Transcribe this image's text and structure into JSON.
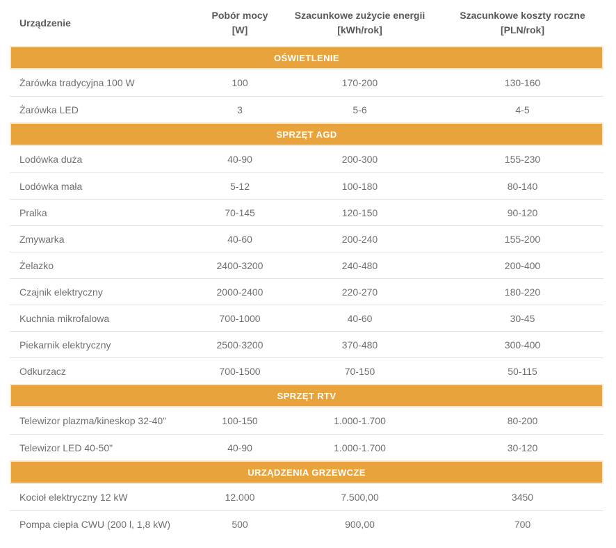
{
  "table": {
    "columns": [
      {
        "label": "Urządzenie",
        "unit": ""
      },
      {
        "label": "Pobór mocy",
        "unit": "[W]"
      },
      {
        "label": "Szacunkowe zużycie energii",
        "unit": "[kWh/rok]"
      },
      {
        "label": "Szacunkowe koszty roczne",
        "unit": "[PLN/rok]"
      }
    ],
    "sections": [
      {
        "title": "OŚWIETLENIE",
        "rows": [
          {
            "device": "Żarówka tradycyjna 100 W",
            "power": "100",
            "energy": "170-200",
            "cost": "130-160"
          },
          {
            "device": "Żarówka LED",
            "power": "3",
            "energy": "5-6",
            "cost": "4-5"
          }
        ]
      },
      {
        "title": "SPRZĘT AGD",
        "rows": [
          {
            "device": "Lodówka duża",
            "power": "40-90",
            "energy": "200-300",
            "cost": "155-230"
          },
          {
            "device": "Lodówka mała",
            "power": "5-12",
            "energy": "100-180",
            "cost": "80-140"
          },
          {
            "device": "Pralka",
            "power": "70-145",
            "energy": "120-150",
            "cost": "90-120"
          },
          {
            "device": "Zmywarka",
            "power": "40-60",
            "energy": "200-240",
            "cost": "155-200"
          },
          {
            "device": "Żelazko",
            "power": "2400-3200",
            "energy": "240-480",
            "cost": "200-400"
          },
          {
            "device": "Czajnik elektryczny",
            "power": "2000-2400",
            "energy": "220-270",
            "cost": "180-220"
          },
          {
            "device": "Kuchnia mikrofalowa",
            "power": "700-1000",
            "energy": "40-60",
            "cost": "30-45"
          },
          {
            "device": "Piekarnik elektryczny",
            "power": "2500-3200",
            "energy": "370-480",
            "cost": "300-400"
          },
          {
            "device": "Odkurzacz",
            "power": "700-1500",
            "energy": "70-150",
            "cost": "50-115"
          }
        ]
      },
      {
        "title": "SPRZĘT RTV",
        "rows": [
          {
            "device": "Telewizor plazma/kineskop 32-40\"",
            "power": "100-150",
            "energy": "1.000-1.700",
            "cost": "80-200"
          },
          {
            "device": "Telewizor LED 40-50\"",
            "power": "40-90",
            "energy": "1.000-1.700",
            "cost": "30-120"
          }
        ]
      },
      {
        "title": "URZĄDZENIA GRZEWCZE",
        "rows": [
          {
            "device": "Kocioł elektryczny 12 kW",
            "power": "12.000",
            "energy": "7.500,00",
            "cost": "3450"
          },
          {
            "device": "Pompa ciepła CWU (200 l, 1,8 kW)",
            "power": "500",
            "energy": "900,00",
            "cost": "700"
          }
        ]
      }
    ],
    "colors": {
      "section_background": "#e8a33d",
      "section_border": "#f8e8ce",
      "section_text": "#ffffff",
      "header_text": "#58595b",
      "body_text": "#6e6f71",
      "row_separator": "#e3e3e3"
    }
  }
}
